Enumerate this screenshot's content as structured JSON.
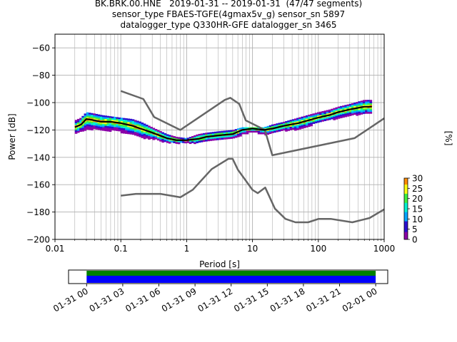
{
  "header": {
    "line1": "BK.BRK.00.HNE   2019-01-31 -- 2019-01-31  (47/47 segments)",
    "line2": "sensor_type FBAES-TGFE(4gmax5v_g) sensor_sn 5897",
    "line3": "datalogger_type Q330HR-GFE datalogger_sn 3465"
  },
  "chart_data": [
    {
      "type": "heatmap",
      "title": "BK.BRK.00.HNE   2019-01-31 -- 2019-01-31  (47/47 segments)",
      "xlabel": "Period [s]",
      "ylabel": "Power [dB]",
      "xscale": "log",
      "xlim": [
        0.01,
        1000
      ],
      "ylim": [
        -200,
        -50
      ],
      "x_ticks": [
        0.01,
        0.1,
        1,
        10,
        100,
        1000
      ],
      "x_tick_labels": [
        "0.01",
        "0.1",
        "1",
        "10",
        "100",
        "1000"
      ],
      "y_ticks": [
        -200,
        -180,
        -160,
        -140,
        -120,
        -100,
        -80,
        -60
      ],
      "y_tick_labels": [
        "−200",
        "−180",
        "−160",
        "−140",
        "−120",
        "−100",
        "−80",
        "−60"
      ],
      "grid": true,
      "colorbar": {
        "label": "[%]",
        "range": [
          0,
          30
        ],
        "ticks": [
          "0",
          "5",
          "10",
          "15",
          "20",
          "25",
          "30"
        ]
      },
      "series": [
        {
          "name": "",
          "role": "mean-psd",
          "color": "#000000",
          "x": [
            0.02,
            0.025,
            0.03,
            0.04,
            0.05,
            0.07,
            0.1,
            0.15,
            0.2,
            0.3,
            0.5,
            0.7,
            1,
            1.5,
            2,
            3,
            5,
            7,
            10,
            15,
            20,
            30,
            50,
            70,
            100,
            150,
            200,
            300,
            500,
            650
          ],
          "y": [
            -118,
            -116,
            -112,
            -113,
            -114,
            -114,
            -115,
            -117,
            -119,
            -122,
            -126,
            -127.5,
            -127.5,
            -126.5,
            -125,
            -124,
            -123,
            -120,
            -119,
            -120,
            -119,
            -117,
            -115,
            -113,
            -111,
            -109,
            -107,
            -105,
            -103,
            -103
          ]
        },
        {
          "name": "",
          "role": "nhnm",
          "color": "#666666",
          "x": [
            0.1,
            0.22,
            0.32,
            0.8,
            3.8,
            4.6,
            6.3,
            7.9,
            15.4,
            20,
            354.8,
            1000
          ],
          "y": [
            -91.5,
            -97.4,
            -110.5,
            -120,
            -98,
            -96.5,
            -101,
            -113,
            -120,
            -138.5,
            -126,
            -111.5
          ]
        },
        {
          "name": "",
          "role": "nlnm",
          "color": "#666666",
          "x": [
            0.1,
            0.17,
            0.4,
            0.8,
            1.24,
            2.4,
            4.3,
            5,
            6,
            10,
            12,
            15.6,
            21.9,
            31.6,
            45,
            70,
            101,
            154,
            328,
            600,
            1000
          ],
          "y": [
            -168,
            -166.7,
            -166.7,
            -169.2,
            -163.7,
            -148.6,
            -141.1,
            -141.1,
            -149,
            -163.8,
            -166.2,
            -162.1,
            -177.5,
            -185,
            -187.5,
            -187.5,
            -185,
            -185,
            -187.5,
            -184.4,
            -178
          ]
        }
      ],
      "heatmap_bands": {
        "x": [
          0.02,
          0.025,
          0.03,
          0.04,
          0.05,
          0.07,
          0.1,
          0.15,
          0.2,
          0.3,
          0.5,
          0.7,
          1,
          1.5,
          2,
          3,
          5,
          7,
          10,
          15,
          20,
          30,
          50,
          70,
          100,
          150,
          200,
          300,
          500,
          650
        ],
        "upper": [
          -113,
          -111,
          -107,
          -108,
          -109,
          -110,
          -111,
          -112,
          -114,
          -118,
          -123,
          -125,
          -126,
          -123,
          -122,
          -121,
          -120,
          -118,
          -118,
          -118,
          -116,
          -114,
          -111,
          -109,
          -107,
          -105,
          -103,
          -101,
          -98,
          -98
        ],
        "lower": [
          -122,
          -121,
          -119,
          -119,
          -120,
          -120,
          -121,
          -123,
          -125,
          -126,
          -129,
          -129,
          -129,
          -129,
          -128,
          -127,
          -126,
          -123,
          -121,
          -123,
          -122,
          -120,
          -119,
          -117,
          -114,
          -112,
          -111,
          -109,
          -108,
          -108
        ]
      }
    },
    {
      "type": "bar",
      "role": "data-coverage",
      "x_tick_labels": [
        "01-31 00",
        "01-31 03",
        "01-31 06",
        "01-31 09",
        "01-31 12",
        "01-31 15",
        "01-31 18",
        "01-31 21",
        "02-01 00"
      ],
      "xlim": [
        "01-30 22:30",
        "02-01 01:00"
      ],
      "coverage": {
        "start": "01-31 00",
        "end": "02-01 00",
        "available_color": "#008000",
        "used_color": "#0000ff"
      }
    }
  ]
}
